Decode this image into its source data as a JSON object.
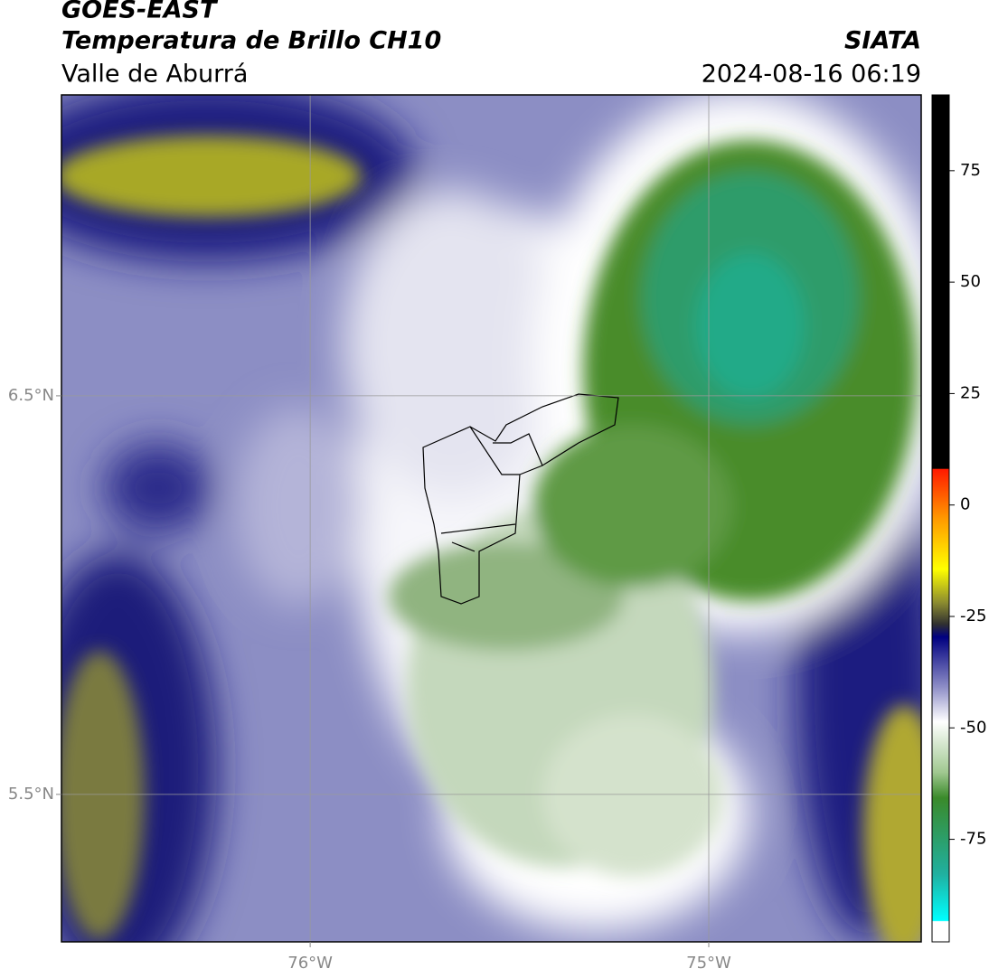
{
  "header": {
    "title": "GOES-EAST",
    "subtitle": "Temperatura de Brillo CH10",
    "region": "Valle de Aburrá",
    "source": "SIATA",
    "datetime": "2024-08-16 06:19"
  },
  "map": {
    "xlim": [
      -76.624,
      -74.467
    ],
    "ylim": [
      5.13,
      7.255
    ],
    "xticks": [
      {
        "value": -76,
        "label": "76°W"
      },
      {
        "value": -75,
        "label": "75°W"
      }
    ],
    "yticks": [
      {
        "value": 6.5,
        "label": "6.5°N"
      },
      {
        "value": 5.5,
        "label": "5.5°N"
      }
    ],
    "grid": true
  },
  "colorbar": {
    "lim": [
      -98,
      92
    ],
    "ticks": [
      75,
      50,
      25,
      0,
      -25,
      -50,
      -75
    ]
  }
}
